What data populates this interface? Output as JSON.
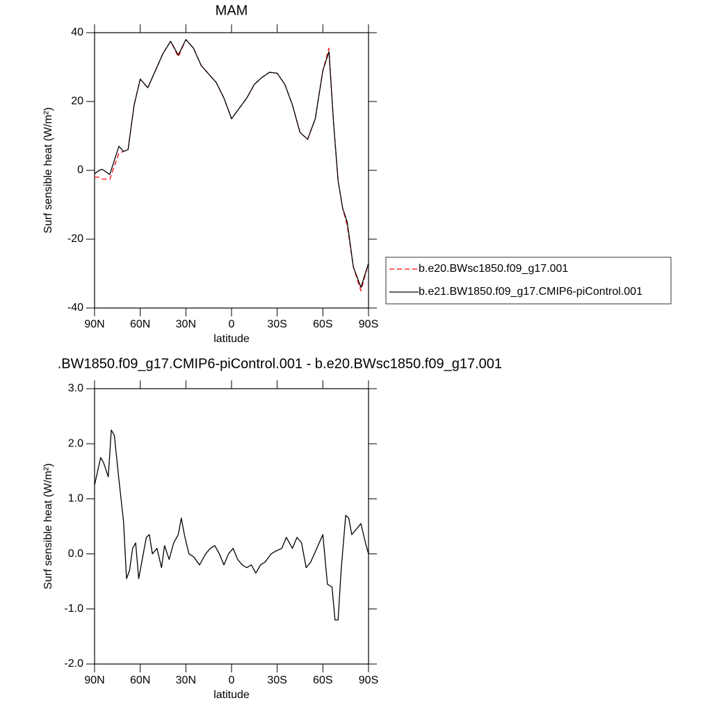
{
  "chart_data": [
    {
      "type": "line",
      "title": "MAM",
      "xlabel": "latitude",
      "ylabel": "Surf sensible heat (W/m²)",
      "xlim": [
        90,
        -90
      ],
      "xticks": [
        {
          "value": 90,
          "label": "90N"
        },
        {
          "value": 60,
          "label": "60N"
        },
        {
          "value": 30,
          "label": "30N"
        },
        0,
        {
          "value": -30,
          "label": "30S"
        },
        {
          "value": -60,
          "label": "60S"
        },
        {
          "value": -90,
          "label": "90S"
        }
      ],
      "ylim": [
        -40,
        40
      ],
      "yticks": [
        -40,
        -20,
        0,
        20,
        40
      ],
      "legend": "right",
      "x": [
        90,
        87,
        85,
        80,
        74,
        71,
        68,
        64,
        60,
        55,
        50,
        45,
        40,
        35,
        30,
        25,
        20,
        15,
        10,
        5,
        0,
        -5,
        -10,
        -15,
        -20,
        -25,
        -30,
        -35,
        -40,
        -45,
        -50,
        -55,
        -60,
        -64,
        -67,
        -70,
        -73,
        -76,
        -80,
        -85,
        -90
      ],
      "series": [
        {
          "name": "b.e20.BWsc1850.f09_g17.001",
          "color": "#ff0000",
          "linestyle": "dashed",
          "values": [
            -2,
            -2,
            -2.5,
            -2.6,
            5,
            5.5,
            6,
            19,
            26.5,
            24,
            29,
            34,
            37.5,
            33,
            38,
            35.5,
            30.5,
            28,
            25.5,
            21,
            15,
            18,
            21,
            25,
            27,
            28.5,
            28.2,
            25,
            19,
            11,
            9,
            15,
            29,
            35.5,
            14,
            -3,
            -11,
            -16,
            -28,
            -35,
            -27
          ]
        },
        {
          "name": "b.e21.BW1850.f09_g17.CMIP6-piControl.001",
          "color": "#000000",
          "linestyle": "solid",
          "values": [
            -1,
            0,
            0.3,
            -1.2,
            7,
            5.5,
            6,
            19,
            26.5,
            24,
            29,
            34,
            37.5,
            33.5,
            38,
            35.5,
            30.5,
            28,
            25.5,
            21,
            15,
            18,
            21,
            25,
            27,
            28.5,
            28.2,
            25,
            19,
            11,
            9,
            15,
            29,
            34.5,
            14,
            -3,
            -11,
            -15,
            -28,
            -34,
            -27
          ]
        }
      ]
    },
    {
      "type": "line",
      "title": ".BW1850.f09_g17.CMIP6-piControl.001 - b.e20.BWsc1850.f09_g17.001",
      "xlabel": "latitude",
      "ylabel": "Surf sensible heat (W/m²)",
      "xlim": [
        90,
        -90
      ],
      "xticks": [
        {
          "value": 90,
          "label": "90N"
        },
        {
          "value": 60,
          "label": "60N"
        },
        {
          "value": 30,
          "label": "30N"
        },
        0,
        {
          "value": -30,
          "label": "30S"
        },
        {
          "value": -60,
          "label": "60S"
        },
        {
          "value": -90,
          "label": "90S"
        }
      ],
      "ylim": [
        -2,
        3
      ],
      "yticks": [
        {
          "value": -2,
          "label": "-2.0"
        },
        {
          "value": -1,
          "label": "-1.0"
        },
        {
          "value": 0,
          "label": "0.0"
        },
        {
          "value": 1,
          "label": "1.0"
        },
        {
          "value": 2,
          "label": "2.0"
        },
        {
          "value": 3,
          "label": "3.0"
        }
      ],
      "x": [
        90,
        86,
        84,
        81,
        79,
        77,
        74,
        71,
        69,
        67,
        65,
        63,
        61,
        59,
        56,
        54,
        52,
        49,
        46,
        44,
        41,
        38,
        35,
        33,
        31,
        28,
        25,
        21,
        17,
        14,
        11,
        8,
        5,
        2,
        -1,
        -4,
        -7,
        -10,
        -13,
        -16,
        -19,
        -22,
        -26,
        -29,
        -33,
        -36,
        -40,
        -43,
        -46,
        -49,
        -52,
        -56,
        -60,
        -63,
        -66,
        -68,
        -70,
        -72,
        -75,
        -77,
        -79,
        -82,
        -85,
        -88,
        -90
      ],
      "series": [
        {
          "color": "#000000",
          "linestyle": "solid",
          "values": [
            1.25,
            1.75,
            1.65,
            1.4,
            2.25,
            2.15,
            1.35,
            0.6,
            -0.45,
            -0.3,
            0.1,
            0.2,
            -0.45,
            -0.15,
            0.3,
            0.35,
            0,
            0.1,
            -0.25,
            0.15,
            -0.1,
            0.2,
            0.35,
            0.65,
            0.35,
            0,
            -0.05,
            -0.2,
            0,
            0.1,
            0.15,
            0,
            -0.2,
            0,
            0.1,
            -0.1,
            -0.2,
            -0.25,
            -0.2,
            -0.35,
            -0.2,
            -0.15,
            0,
            0.05,
            0.1,
            0.3,
            0.1,
            0.3,
            0.2,
            -0.25,
            -0.15,
            0.1,
            0.35,
            -0.55,
            -0.6,
            -1.2,
            -1.2,
            -0.3,
            0.7,
            0.65,
            0.35,
            0.45,
            0.55,
            0.2,
            0
          ]
        }
      ]
    }
  ]
}
